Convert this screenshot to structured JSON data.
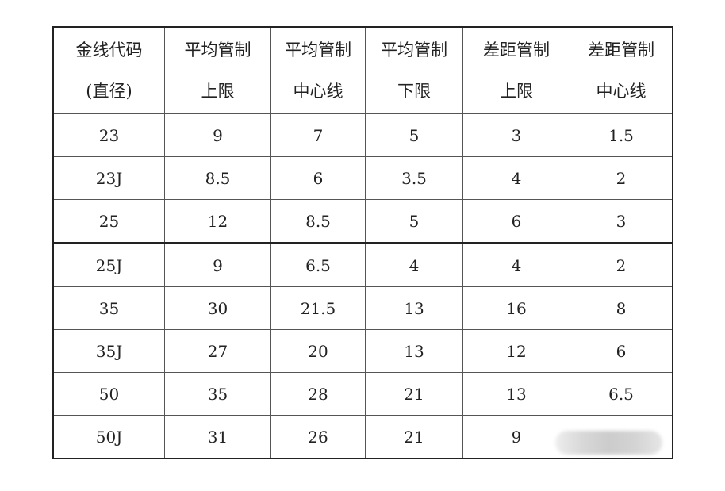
{
  "table": {
    "headers": [
      [
        "金线代码",
        "(直径)"
      ],
      [
        "平均管制",
        "上限"
      ],
      [
        "平均管制",
        "中心线"
      ],
      [
        "平均管制",
        "下限"
      ],
      [
        "差距管制",
        "上限"
      ],
      [
        "差距管制",
        "中心线"
      ]
    ],
    "rows": [
      [
        "23",
        "9",
        "7",
        "5",
        "3",
        "1.5"
      ],
      [
        "23J",
        "8.5",
        "6",
        "3.5",
        "4",
        "2"
      ],
      [
        "25",
        "12",
        "8.5",
        "5",
        "6",
        "3"
      ],
      [
        "25J",
        "9",
        "6.5",
        "4",
        "4",
        "2"
      ],
      [
        "35",
        "30",
        "21.5",
        "13",
        "16",
        "8"
      ],
      [
        "35J",
        "27",
        "20",
        "13",
        "12",
        "6"
      ],
      [
        "50",
        "35",
        "28",
        "21",
        "13",
        "6.5"
      ],
      [
        "50J",
        "31",
        "26",
        "21",
        "9",
        ""
      ]
    ]
  }
}
